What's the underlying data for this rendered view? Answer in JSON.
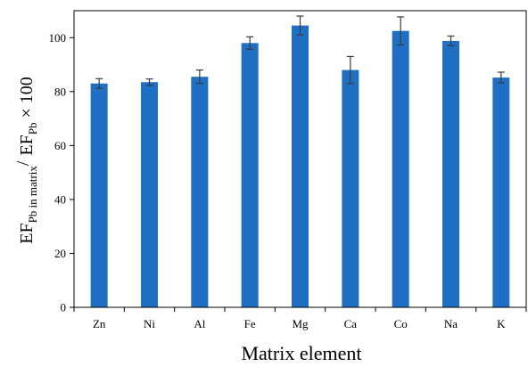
{
  "chart_data": {
    "type": "bar",
    "title": "",
    "xlabel": "Matrix element",
    "ylabel": {
      "main1": "EF",
      "sub1": "Pb in matrix",
      "slash": "/",
      "main2": "EF",
      "sub2": "Pb",
      "suffix": "× 100"
    },
    "categories": [
      "Zn",
      "Ni",
      "Al",
      "Fe",
      "Mg",
      "Ca",
      "Co",
      "Na",
      "K"
    ],
    "values": [
      83,
      83.5,
      85.5,
      98,
      104.5,
      88,
      102.5,
      98.8,
      85.2
    ],
    "errors": [
      1.8,
      1.2,
      2.5,
      2.3,
      3.5,
      5.0,
      5.2,
      1.8,
      2.0
    ],
    "ylim": [
      0,
      110
    ],
    "yticks": [
      0,
      20,
      40,
      60,
      80,
      100
    ],
    "bar_color": "#1f6fc5",
    "grid": false,
    "legend": "none"
  }
}
